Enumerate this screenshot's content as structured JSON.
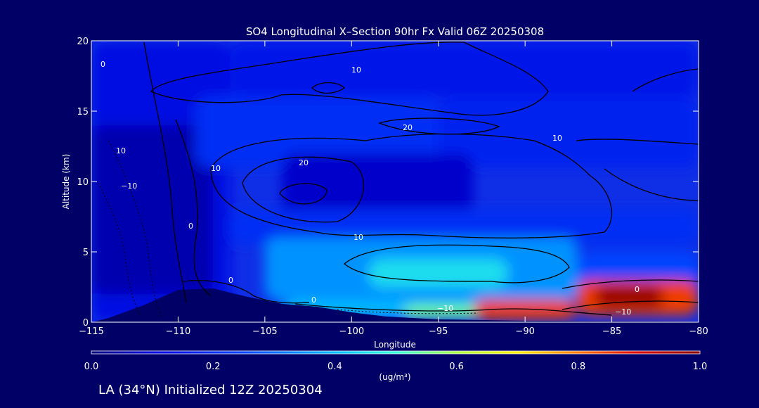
{
  "chart_data": {
    "type": "heatmap",
    "title": "SO4 Longitudinal X–Section 90hr  Fx Valid 06Z 20250308",
    "xlabel": "Longitude",
    "ylabel": "Altitude (km)",
    "xlim": [
      -115,
      -80
    ],
    "ylim": [
      0,
      20
    ],
    "xticks": [
      -115,
      -110,
      -105,
      -100,
      -95,
      -90,
      -85,
      -80
    ],
    "yticks": [
      0,
      5,
      10,
      15,
      20
    ],
    "xtick_labels": [
      "−115",
      "−110",
      "−105",
      "−100",
      "−95",
      "−90",
      "−85",
      "−80"
    ],
    "ytick_labels": [
      "0",
      "5",
      "10",
      "15",
      "20"
    ],
    "colorbar": {
      "range": [
        0.0,
        1.0
      ],
      "ticks": [
        "0.0",
        "0.2",
        "0.4",
        "0.6",
        "0.8",
        "1.0"
      ],
      "unit_label": "(ug/m³)",
      "colors": [
        "#000099",
        "#0022ee",
        "#0077ff",
        "#00ccff",
        "#33ffcc",
        "#ccff33",
        "#ffcc00",
        "#ff5500",
        "#cc0000",
        "#880000"
      ]
    },
    "contour_labels": [
      "0",
      "10",
      "10",
      "10",
      "20",
      "20",
      "10",
      "0",
      "0",
      "−10",
      "−10",
      "0",
      "10",
      "0",
      "−10"
    ],
    "field_cells": [
      {
        "lon": [
          -115,
          -107
        ],
        "alt": [
          0,
          20
        ],
        "value": 0.12
      },
      {
        "lon": [
          -115,
          -108
        ],
        "alt": [
          2,
          14
        ],
        "value": 0.05
      },
      {
        "lon": [
          -107,
          -80
        ],
        "alt": [
          16,
          20
        ],
        "value": 0.15
      },
      {
        "lon": [
          -109,
          -95
        ],
        "alt": [
          11,
          16
        ],
        "value": 0.2
      },
      {
        "lon": [
          -95,
          -80
        ],
        "alt": [
          11,
          16
        ],
        "value": 0.18
      },
      {
        "lon": [
          -104,
          -93
        ],
        "alt": [
          7,
          12
        ],
        "value": 0.08
      },
      {
        "lon": [
          -107,
          -80
        ],
        "alt": [
          5.5,
          8
        ],
        "value": 0.2
      },
      {
        "lon": [
          -105,
          -87
        ],
        "alt": [
          1.5,
          6
        ],
        "value": 0.35
      },
      {
        "lon": [
          -99,
          -91
        ],
        "alt": [
          2.5,
          4.5
        ],
        "value": 0.45
      },
      {
        "lon": [
          -87,
          -80
        ],
        "alt": [
          1.5,
          5
        ],
        "value": 0.25
      },
      {
        "lon": [
          -104,
          -92
        ],
        "alt": [
          0.3,
          1.5
        ],
        "value": 0.4
      },
      {
        "lon": [
          -97,
          -92
        ],
        "alt": [
          0.3,
          1.2
        ],
        "value": 0.55
      },
      {
        "lon": [
          -93,
          -87
        ],
        "alt": [
          0.2,
          1.6
        ],
        "value": 0.85
      },
      {
        "lon": [
          -87,
          -80
        ],
        "alt": [
          0.5,
          3
        ],
        "value": 0.85
      },
      {
        "lon": [
          -86,
          -82
        ],
        "alt": [
          1,
          2.6
        ],
        "value": 0.98
      }
    ],
    "terrain": [
      [
        -115,
        0
      ],
      [
        -114,
        0.3
      ],
      [
        -112,
        1.2
      ],
      [
        -110,
        2.3
      ],
      [
        -108,
        2.4
      ],
      [
        -106,
        1.8
      ],
      [
        -104,
        1.3
      ],
      [
        -102,
        1.1
      ],
      [
        -100,
        0.7
      ],
      [
        -98,
        0.4
      ],
      [
        -95,
        0.2
      ],
      [
        -90,
        0.1
      ],
      [
        -80,
        0.05
      ]
    ]
  },
  "footer": {
    "caption": "LA (34°N) Initialized 12Z 20250304"
  },
  "colors": {
    "background": "#000066",
    "text": "#ffffff",
    "contour": "#000000"
  }
}
